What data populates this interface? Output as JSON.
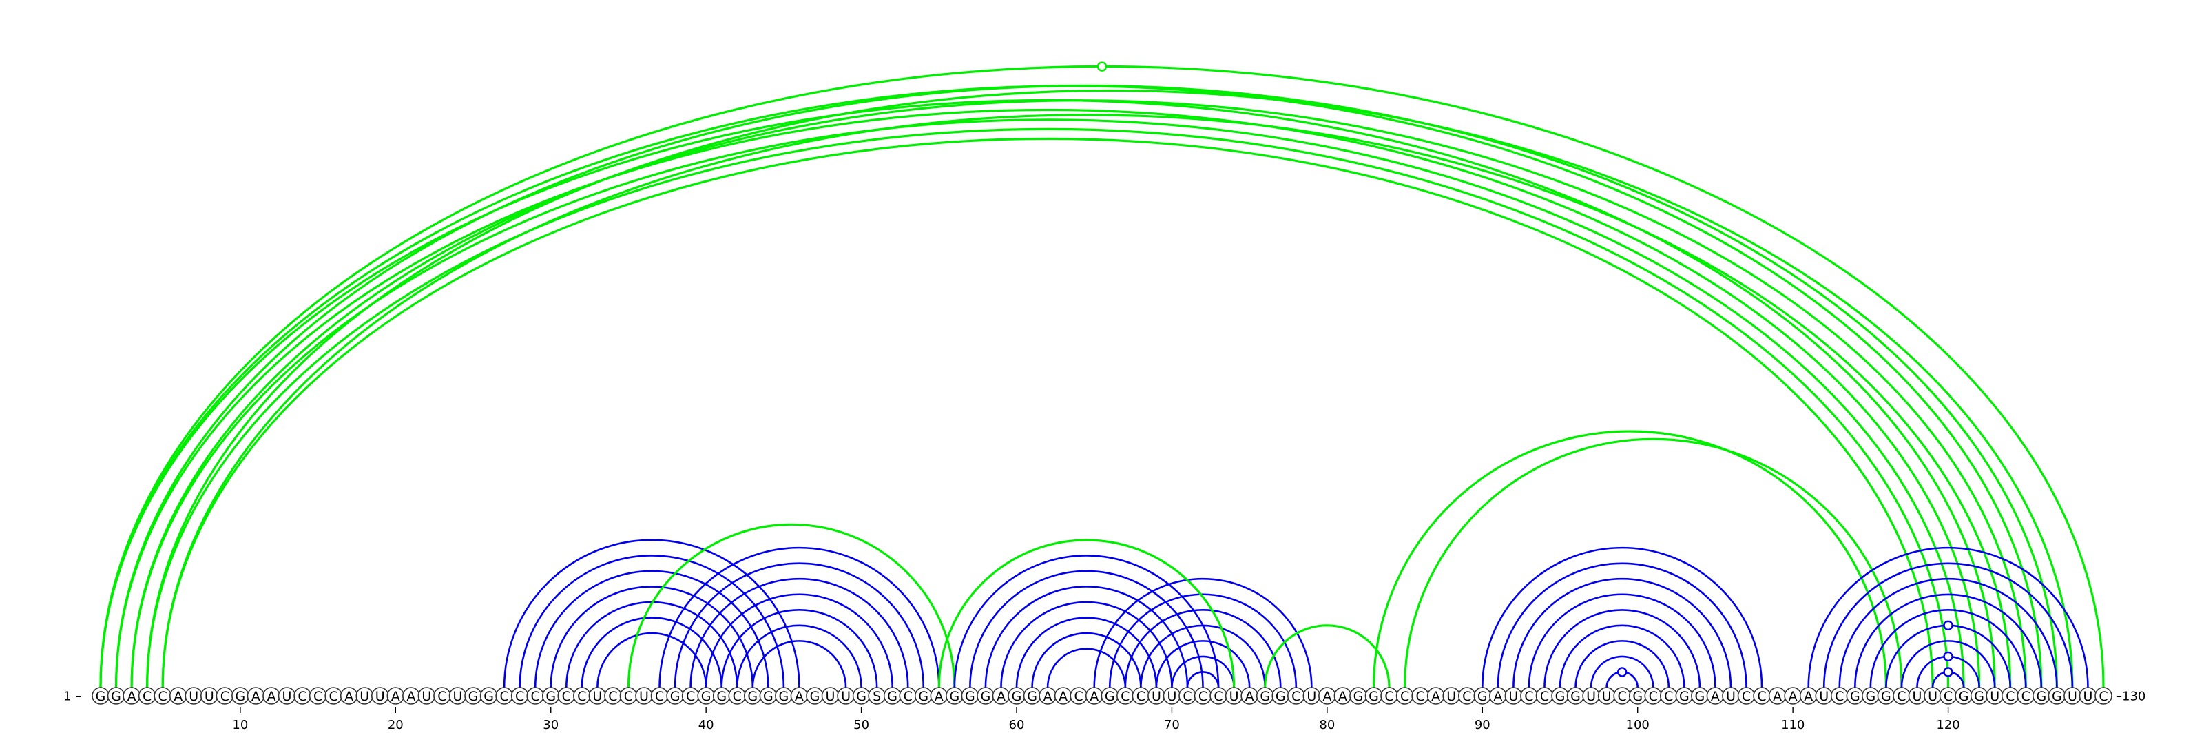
{
  "sequence": "GGACCAUUCGAAUCCCAUUAAUCUGGCCCGCCUCCUCGCGGCGGGAGUUGSGCGAGGGAGGAACAGCCUUCCCUAGGCUAAGGCCCAUCGAUCCGGUUCGCCGGAUCCAAAUCGGGCUUCGGUCCGGUUC",
  "length": 130,
  "start_label": "1",
  "end_label": "130",
  "tick_labels": [
    "10",
    "20",
    "30",
    "40",
    "50",
    "60",
    "70",
    "80",
    "90",
    "100",
    "110",
    "120"
  ],
  "colors": {
    "blue": "#0000ee",
    "green": "#00ee00"
  },
  "arc_groups": [
    {
      "color": "green",
      "pairs": [
        [
          1,
          123
        ],
        [
          2,
          122
        ],
        [
          3,
          121
        ],
        [
          4,
          120
        ],
        [
          5,
          119
        ]
      ]
    },
    {
      "color": "green",
      "pairs": [
        [
          1,
          126
        ],
        [
          2,
          127
        ],
        [
          3,
          125
        ],
        [
          4,
          128
        ],
        [
          5,
          124
        ]
      ]
    },
    {
      "color": "green",
      "pairs": [
        [
          1,
          130
        ]
      ]
    },
    {
      "color": "blue",
      "pairs": [
        [
          27,
          46
        ],
        [
          28,
          45
        ],
        [
          29,
          44
        ],
        [
          30,
          43
        ],
        [
          31,
          42
        ],
        [
          32,
          41
        ],
        [
          33,
          40
        ]
      ]
    },
    {
      "color": "blue",
      "pairs": [
        [
          37,
          55
        ],
        [
          38,
          54
        ],
        [
          39,
          53
        ],
        [
          40,
          52
        ],
        [
          41,
          51
        ],
        [
          42,
          50
        ],
        [
          43,
          49
        ]
      ]
    },
    {
      "color": "green",
      "pairs": [
        [
          35,
          56
        ]
      ]
    },
    {
      "color": "blue",
      "pairs": [
        [
          56,
          73
        ],
        [
          57,
          72
        ],
        [
          58,
          71
        ],
        [
          59,
          70
        ],
        [
          60,
          69
        ],
        [
          61,
          68
        ],
        [
          62,
          67
        ]
      ]
    },
    {
      "color": "blue",
      "pairs": [
        [
          65,
          79
        ],
        [
          66,
          78
        ],
        [
          67,
          77
        ],
        [
          68,
          76
        ],
        [
          69,
          75
        ],
        [
          70,
          74
        ],
        [
          71,
          73
        ]
      ]
    },
    {
      "color": "green",
      "pairs": [
        [
          55,
          74
        ],
        [
          76,
          84
        ]
      ]
    },
    {
      "color": "green",
      "pairs": [
        [
          85,
          117
        ],
        [
          83,
          116
        ]
      ]
    },
    {
      "color": "blue",
      "pairs": [
        [
          90,
          108
        ],
        [
          91,
          107
        ],
        [
          92,
          106
        ],
        [
          93,
          105
        ],
        [
          94,
          104
        ],
        [
          95,
          103
        ],
        [
          96,
          102
        ],
        [
          97,
          101
        ],
        [
          98,
          100
        ]
      ]
    },
    {
      "color": "blue",
      "pairs": [
        [
          111,
          129
        ],
        [
          112,
          128
        ],
        [
          113,
          127
        ],
        [
          114,
          126
        ],
        [
          115,
          125
        ],
        [
          116,
          124
        ],
        [
          117,
          123
        ],
        [
          118,
          122
        ],
        [
          119,
          121
        ]
      ]
    }
  ]
}
